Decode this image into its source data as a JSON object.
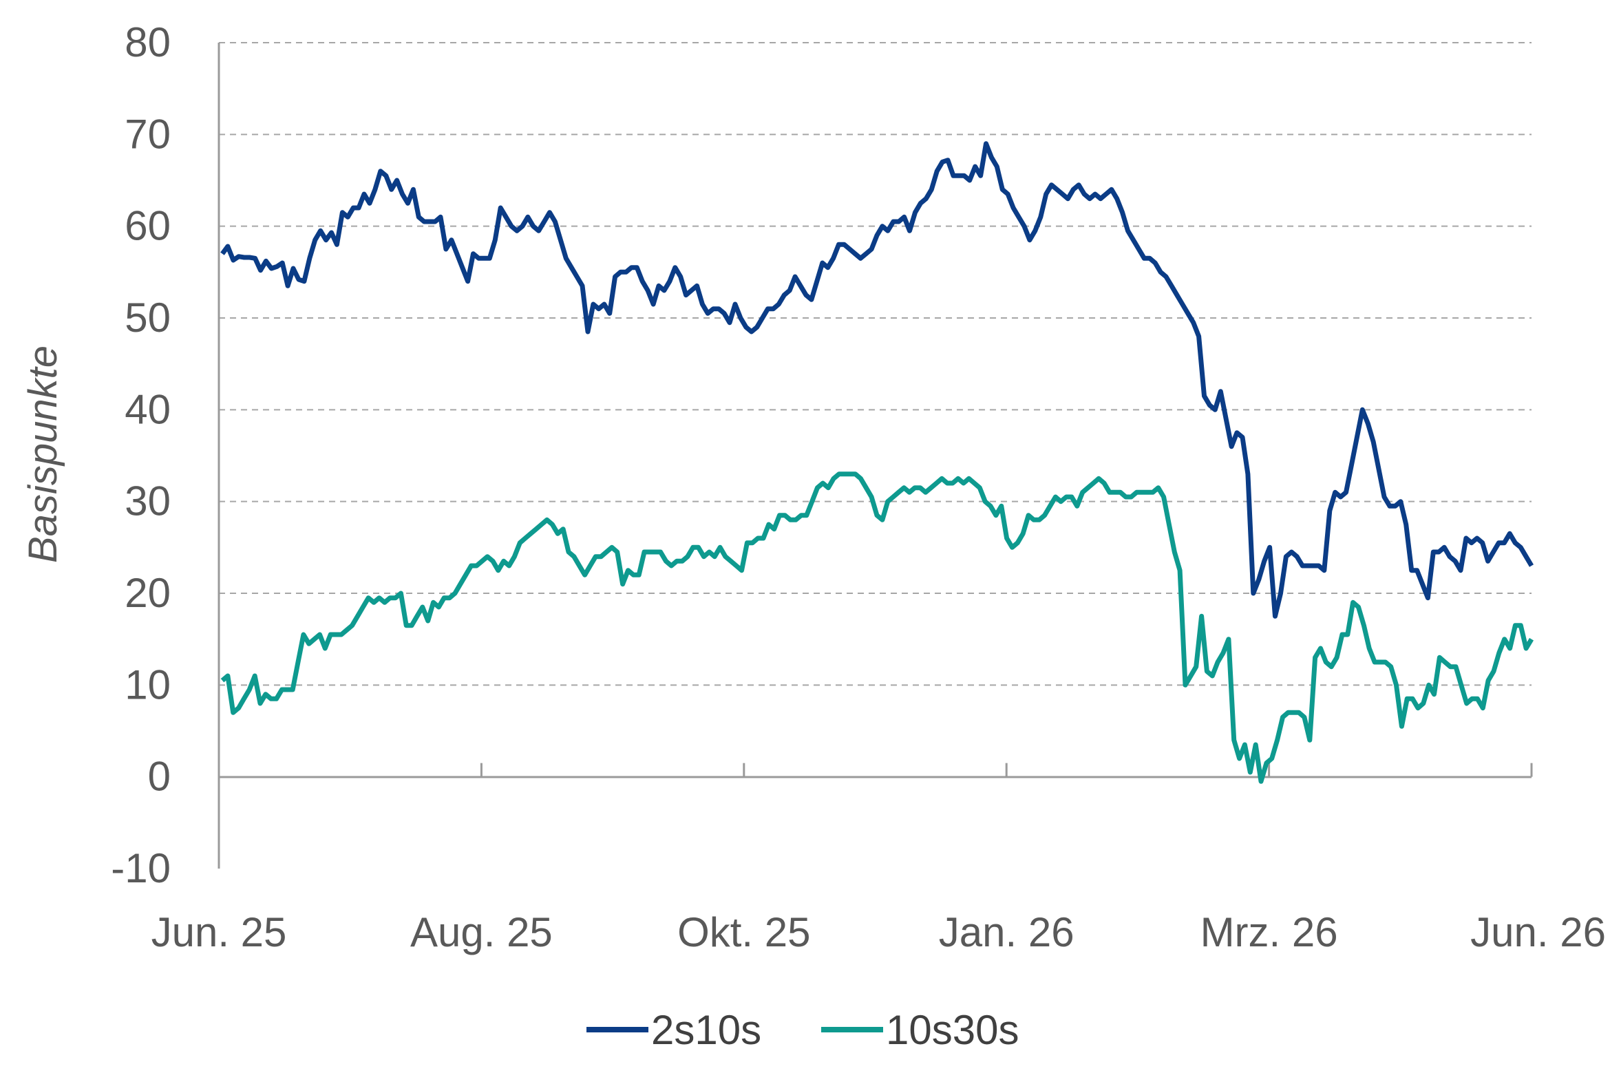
{
  "chart_data": {
    "type": "line",
    "ylabel": "Basispunkte",
    "xlabel": "",
    "ylim": [
      -10,
      80
    ],
    "yticks": [
      -10,
      0,
      10,
      20,
      30,
      40,
      50,
      60,
      70,
      80
    ],
    "x_tick_labels": [
      "Jun. 25",
      "Aug. 25",
      "Okt. 25",
      "Jan. 26",
      "Mrz. 26",
      "Jun. 26"
    ],
    "grid": "horizontal dashed",
    "legend_position": "bottom",
    "series": [
      {
        "name": "2s10s",
        "color": "#0B3C86",
        "values": [
          57.0,
          57.8,
          56.3,
          56.7,
          56.6,
          56.6,
          56.5,
          55.2,
          56.2,
          55.4,
          55.6,
          56.0,
          53.5,
          55.4,
          54.2,
          54.0,
          56.5,
          58.5,
          59.5,
          58.5,
          59.3,
          58.0,
          61.5,
          61.0,
          62.0,
          62.0,
          63.5,
          62.5,
          64.0,
          66.0,
          65.5,
          64.0,
          65.0,
          63.5,
          62.5,
          64.0,
          61.0,
          60.5,
          60.5,
          60.5,
          61.0,
          57.5,
          58.5,
          57.0,
          55.5,
          54.0,
          57.0,
          56.5,
          56.5,
          56.5,
          58.5,
          62.0,
          61.0,
          60.0,
          59.5,
          60.0,
          61.0,
          60.0,
          59.5,
          60.5,
          61.5,
          60.5,
          58.5,
          56.5,
          55.5,
          54.5,
          53.5,
          48.5,
          51.5,
          51.0,
          51.5,
          50.5,
          54.5,
          55.0,
          55.0,
          55.5,
          55.5,
          54.0,
          53.0,
          51.5,
          53.5,
          53.0,
          54.0,
          55.5,
          54.5,
          52.5,
          53.0,
          53.5,
          51.5,
          50.5,
          51.0,
          51.0,
          50.5,
          49.5,
          51.5,
          50.0,
          49.0,
          48.5,
          49.0,
          50.0,
          51.0,
          51.0,
          51.5,
          52.5,
          53.0,
          54.5,
          53.5,
          52.5,
          52.0,
          54.0,
          56.0,
          55.5,
          56.5,
          58.0,
          58.0,
          57.5,
          57.0,
          56.5,
          57.0,
          57.5,
          59.0,
          60.0,
          59.5,
          60.5,
          60.5,
          61.0,
          59.5,
          61.5,
          62.5,
          63.0,
          64.0,
          66.0,
          67.0,
          67.2,
          65.5,
          65.5,
          65.5,
          65.0,
          66.5,
          65.5,
          69.0,
          67.5,
          66.5,
          64.0,
          63.5,
          62.0,
          61.0,
          60.0,
          58.5,
          59.5,
          61.0,
          63.5,
          64.5,
          64.0,
          63.5,
          63.0,
          64.0,
          64.5,
          63.5,
          63.0,
          63.5,
          63.0,
          63.5,
          64.0,
          63.0,
          61.5,
          59.5,
          58.5,
          57.5,
          56.5,
          56.5,
          56.0,
          55.0,
          54.5,
          53.5,
          52.5,
          51.5,
          50.5,
          49.5,
          48.0,
          41.5,
          40.5,
          40.0,
          42.0,
          39.0,
          36.0,
          37.5,
          37.0,
          33.0,
          20.0,
          21.5,
          23.5,
          25.0,
          17.5,
          20.0,
          24.0,
          24.5,
          24.0,
          23.0,
          23.0,
          23.0,
          23.0,
          22.5,
          29.0,
          31.0,
          30.5,
          31.0,
          34.0,
          37.0,
          40.0,
          38.5,
          36.5,
          33.5,
          30.5,
          29.5,
          29.5,
          30.0,
          27.5,
          22.5,
          22.5,
          21.0,
          19.5,
          24.5,
          24.5,
          25.0,
          24.0,
          23.5,
          22.5,
          26.0,
          25.5,
          26.0,
          25.5,
          23.5,
          24.5,
          25.5,
          25.5,
          26.5,
          25.5,
          25.0,
          24.0,
          23.0
        ]
      },
      {
        "name": "10s30s",
        "color": "#0E9A8F",
        "values": [
          10.5,
          11.0,
          7.0,
          7.5,
          8.5,
          9.5,
          11.0,
          8.0,
          9.0,
          8.5,
          8.5,
          9.5,
          9.5,
          9.5,
          12.5,
          15.5,
          14.5,
          15.0,
          15.5,
          14.0,
          15.5,
          15.5,
          15.5,
          16.0,
          16.5,
          17.5,
          18.5,
          19.5,
          19.0,
          19.5,
          19.0,
          19.5,
          19.5,
          20.0,
          16.5,
          16.5,
          17.5,
          18.5,
          17.0,
          19.0,
          18.5,
          19.5,
          19.5,
          20.0,
          21.0,
          22.0,
          23.0,
          23.0,
          23.5,
          24.0,
          23.5,
          22.5,
          23.5,
          23.0,
          24.0,
          25.5,
          26.0,
          26.5,
          27.0,
          27.5,
          28.0,
          27.5,
          26.5,
          27.0,
          24.5,
          24.0,
          23.0,
          22.0,
          23.0,
          24.0,
          24.0,
          24.5,
          25.0,
          24.5,
          21.0,
          22.5,
          22.0,
          22.0,
          24.5,
          24.5,
          24.5,
          24.5,
          23.5,
          23.0,
          23.5,
          23.5,
          24.0,
          25.0,
          25.0,
          24.0,
          24.5,
          24.0,
          25.0,
          24.0,
          23.5,
          23.0,
          22.5,
          25.5,
          25.5,
          26.0,
          26.0,
          27.5,
          27.0,
          28.5,
          28.5,
          28.0,
          28.0,
          28.5,
          28.5,
          30.0,
          31.5,
          32.0,
          31.5,
          32.5,
          33.0,
          33.0,
          33.0,
          33.0,
          32.5,
          31.5,
          30.5,
          28.5,
          28.0,
          30.0,
          30.5,
          31.0,
          31.5,
          31.0,
          31.5,
          31.5,
          31.0,
          31.5,
          32.0,
          32.5,
          32.0,
          32.0,
          32.5,
          32.0,
          32.5,
          32.0,
          31.5,
          30.0,
          29.5,
          28.5,
          29.5,
          26.0,
          25.0,
          25.5,
          26.5,
          28.5,
          28.0,
          28.0,
          28.5,
          29.5,
          30.5,
          30.0,
          30.5,
          30.5,
          29.5,
          31.0,
          31.5,
          32.0,
          32.5,
          32.0,
          31.0,
          31.0,
          31.0,
          30.5,
          30.5,
          31.0,
          31.0,
          31.0,
          31.0,
          31.5,
          30.5,
          27.5,
          24.5,
          22.5,
          10.0,
          11.0,
          12.0,
          17.5,
          11.5,
          11.0,
          12.5,
          13.5,
          15.0,
          4.0,
          2.0,
          3.5,
          0.5,
          3.5,
          -0.5,
          1.5,
          2.0,
          4.0,
          6.5,
          7.0,
          7.0,
          7.0,
          6.5,
          4.0,
          13.0,
          14.0,
          12.5,
          12.0,
          13.0,
          15.5,
          15.5,
          19.0,
          18.5,
          16.5,
          14.0,
          12.5,
          12.5,
          12.5,
          12.0,
          10.0,
          5.5,
          8.5,
          8.5,
          7.5,
          8.0,
          10.0,
          9.0,
          13.0,
          12.5,
          12.0,
          12.0,
          10.0,
          8.0,
          8.5,
          8.5,
          7.5,
          10.5,
          11.5,
          13.5,
          15.0,
          14.0,
          16.5,
          16.5,
          14.0,
          15.0
        ]
      }
    ]
  }
}
